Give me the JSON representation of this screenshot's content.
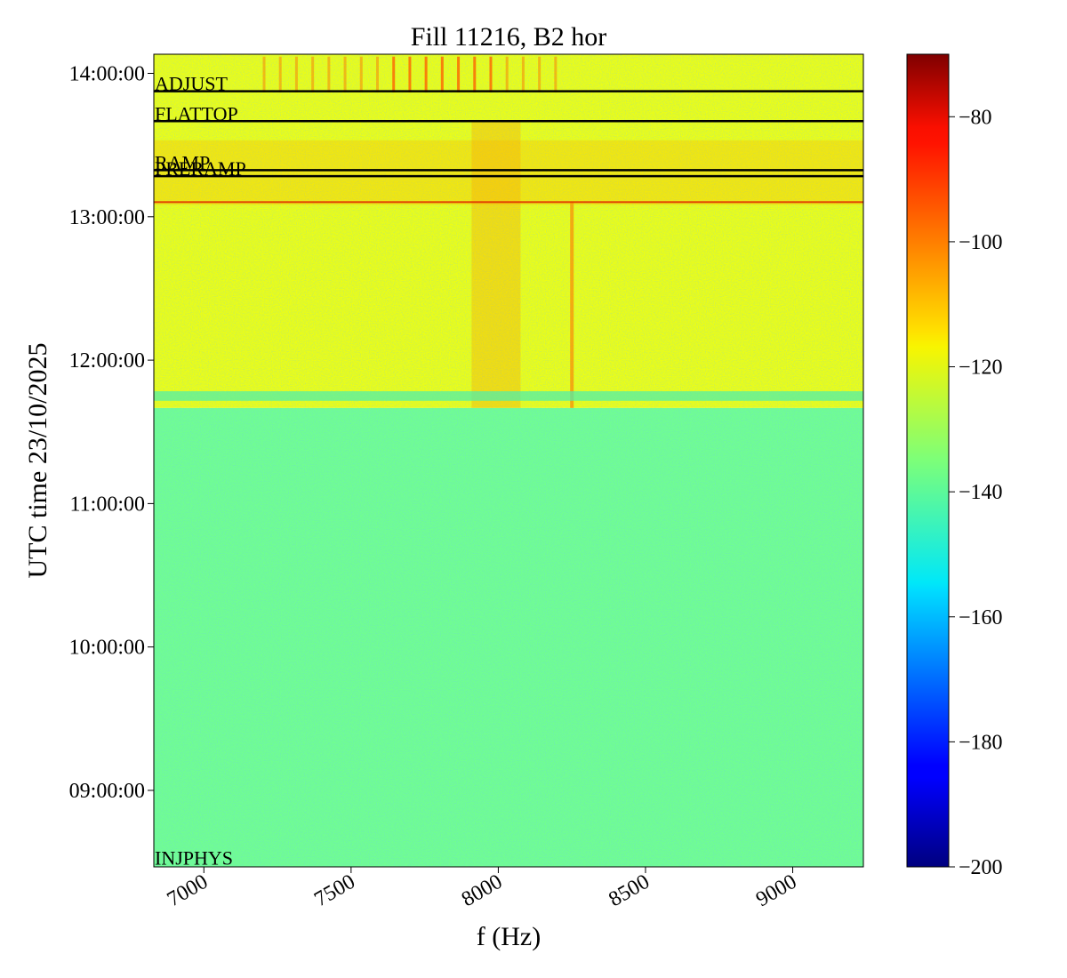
{
  "chart_data": {
    "type": "heatmap",
    "title": "Fill 11216, B2 hor",
    "xlabel": "f (Hz)",
    "ylabel": "UTC time 23/10/2025",
    "xlim": [
      6830,
      9240
    ],
    "ylim": [
      "08:28:00",
      "14:08:00"
    ],
    "x_ticks": [
      7000,
      7500,
      8000,
      8500,
      9000
    ],
    "x_tick_labels": [
      "7000",
      "7500",
      "8000",
      "8500",
      "9000"
    ],
    "y_ticks": [
      "09:00:00",
      "10:00:00",
      "11:00:00",
      "12:00:00",
      "13:00:00",
      "14:00:00"
    ],
    "colorbar": {
      "min": -200,
      "max": -70,
      "ticks": [
        -80,
        -100,
        -120,
        -140,
        -160,
        -180,
        -200
      ],
      "tick_labels": [
        "−80",
        "−100",
        "−120",
        "−140",
        "−160",
        "−180",
        "−200"
      ],
      "colormap": "jet"
    },
    "regions": [
      {
        "from": "08:28:00",
        "to": "11:40:00",
        "level_db": -137
      },
      {
        "from": "11:40:00",
        "to": "14:08:00",
        "level_db": -121
      }
    ],
    "beam_modes": [
      {
        "label": "INJPHYS",
        "time": "08:28:30"
      },
      {
        "label": "PRERAMP",
        "time": "13:17:00"
      },
      {
        "label": "RAMP",
        "time": "13:19:30"
      },
      {
        "label": "FLATTOP",
        "time": "13:40:00"
      },
      {
        "label": "ADJUST",
        "time": "13:52:30"
      }
    ]
  }
}
